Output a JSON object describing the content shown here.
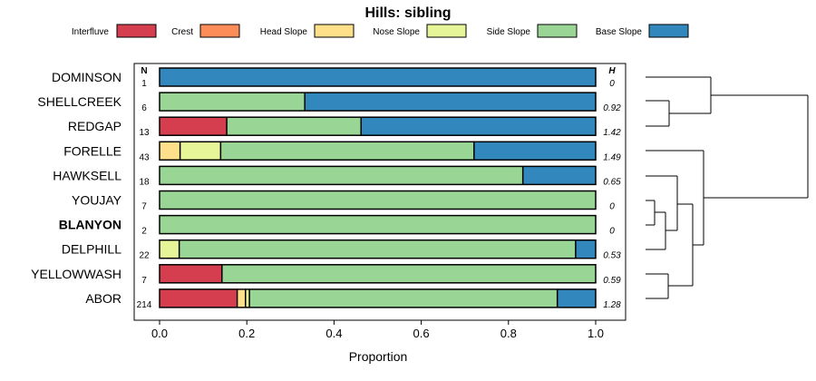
{
  "chart_data": {
    "type": "bar",
    "orientation": "horizontal",
    "stacked": true,
    "title": "Hills: sibling",
    "xlabel": "Proportion",
    "ylabel": "",
    "xlim": [
      0,
      1
    ],
    "x_ticks": [
      "0.0",
      "0.2",
      "0.4",
      "0.6",
      "0.8",
      "1.0"
    ],
    "n_header": "N",
    "h_header": "H",
    "legend_position": "top",
    "legend": [
      {
        "name": "Interfluve",
        "color": "#d53e4f"
      },
      {
        "name": "Crest",
        "color": "#fc8d59"
      },
      {
        "name": "Head Slope",
        "color": "#fee08b"
      },
      {
        "name": "Nose Slope",
        "color": "#e6f598"
      },
      {
        "name": "Side Slope",
        "color": "#99d594"
      },
      {
        "name": "Base Slope",
        "color": "#3288bd"
      }
    ],
    "categories": [
      "DOMINSON",
      "SHELLCREEK",
      "REDGAP",
      "FORELLE",
      "HAWKSELL",
      "YOUJAY",
      "BLANYON",
      "DELPHILL",
      "YELLOWWASH",
      "ABOR"
    ],
    "highlighted": "BLANYON",
    "N": [
      "1",
      "6",
      "13",
      "43",
      "18",
      "7",
      "2",
      "22",
      "7",
      "214"
    ],
    "H": [
      "0",
      "0.92",
      "1.42",
      "1.49",
      "0.65",
      "0",
      "0",
      "0.53",
      "0.59",
      "1.28"
    ],
    "series": [
      {
        "name": "Interfluve",
        "values": [
          0,
          0,
          0.154,
          0,
          0,
          0,
          0,
          0,
          0.143,
          0.178
        ]
      },
      {
        "name": "Crest",
        "values": [
          0,
          0,
          0,
          0,
          0,
          0,
          0,
          0,
          0,
          0
        ]
      },
      {
        "name": "Head Slope",
        "values": [
          0,
          0,
          0,
          0.047,
          0,
          0,
          0,
          0,
          0,
          0.019
        ]
      },
      {
        "name": "Nose Slope",
        "values": [
          0,
          0,
          0,
          0.093,
          0,
          0,
          0,
          0.045,
          0,
          0.009
        ]
      },
      {
        "name": "Side Slope",
        "values": [
          0,
          0.333,
          0.308,
          0.581,
          0.833,
          1,
          1,
          0.909,
          0.857,
          0.706
        ]
      },
      {
        "name": "Base Slope",
        "values": [
          1,
          0.667,
          0.538,
          0.279,
          0.167,
          0,
          0,
          0.046,
          0,
          0.088
        ]
      }
    ],
    "dendrogram_order": [
      "DOMINSON",
      "SHELLCREEK",
      "REDGAP",
      "FORELLE",
      "HAWKSELL",
      "YOUJAY",
      "BLANYON",
      "DELPHILL",
      "YELLOWWASH",
      "ABOR"
    ]
  }
}
